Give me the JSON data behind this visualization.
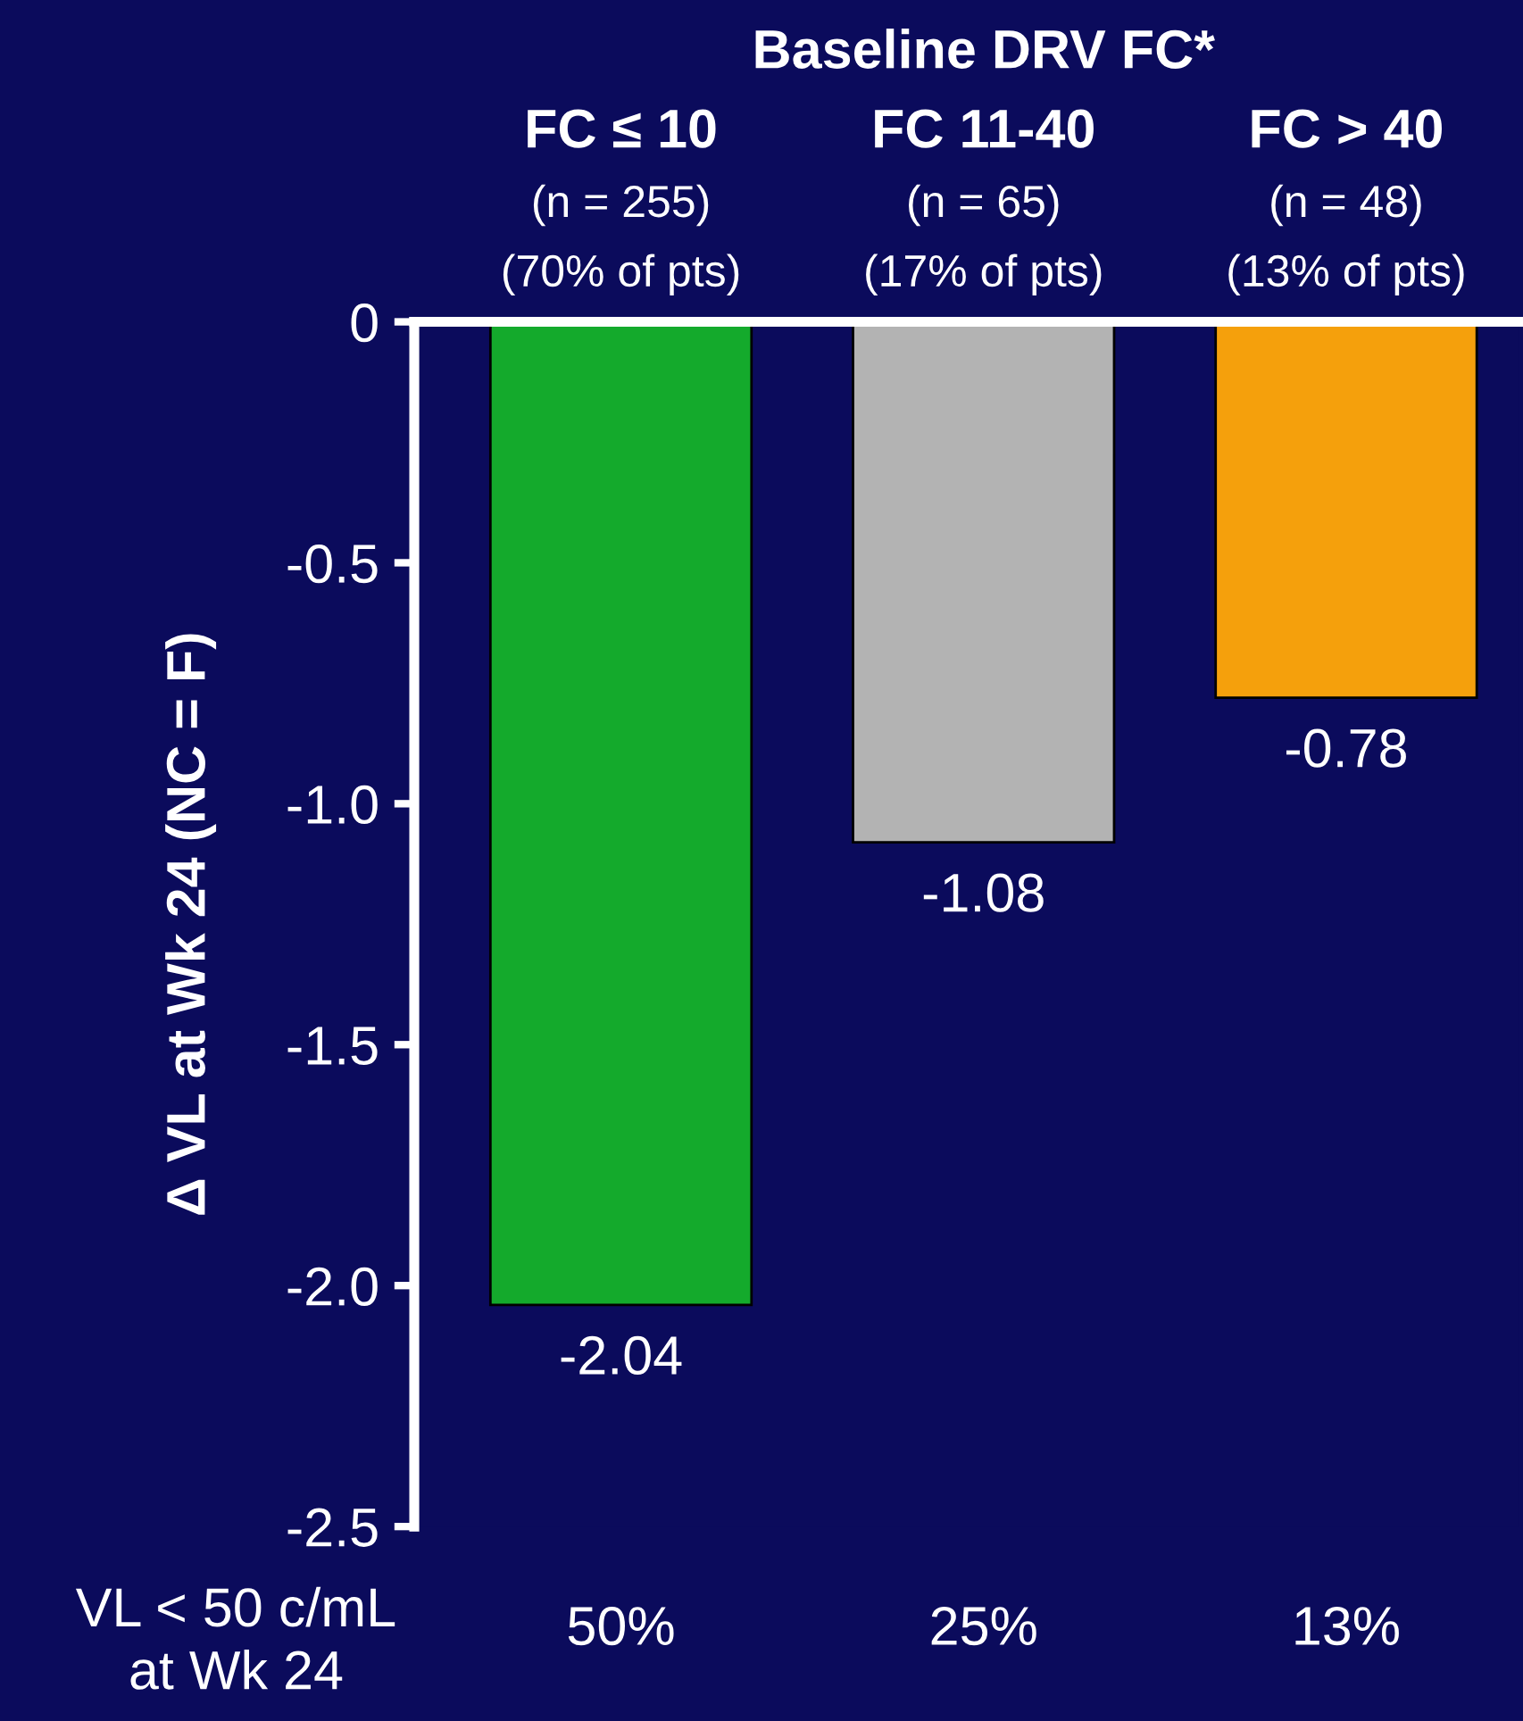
{
  "chart_data": {
    "type": "bar",
    "title": "Baseline DRV FC*",
    "categories": [
      "FC ≤ 10\n(n = 255)\n(70% of pts)",
      "FC 11-40\n(n = 65)\n(17% of pts)",
      "FC > 40\n(n = 48)\n(13% of pts)"
    ],
    "values": [
      -2.04,
      -1.08,
      -0.78
    ],
    "colors": [
      "#14aa2c",
      "#b3b3b3",
      "#f5a00c"
    ],
    "ylabel": "Δ VL at Wk 24 (NC = F)",
    "ylim": [
      -2.5,
      0
    ],
    "yticks": [
      {
        "value": -2.5,
        "label": "-2.5"
      },
      {
        "value": -2.0,
        "label": "-2.0"
      },
      {
        "value": -1.5,
        "label": "-1.5"
      },
      {
        "value": -1.0,
        "label": "-1.0"
      },
      {
        "value": -0.5,
        "label": "-0.5"
      },
      {
        "value": 0,
        "label": "0"
      }
    ],
    "data_labels": true,
    "grid": false,
    "annotations": [
      "VL < 50 c/mL\nat Wk 24",
      "50%",
      "25%",
      "13%"
    ]
  }
}
